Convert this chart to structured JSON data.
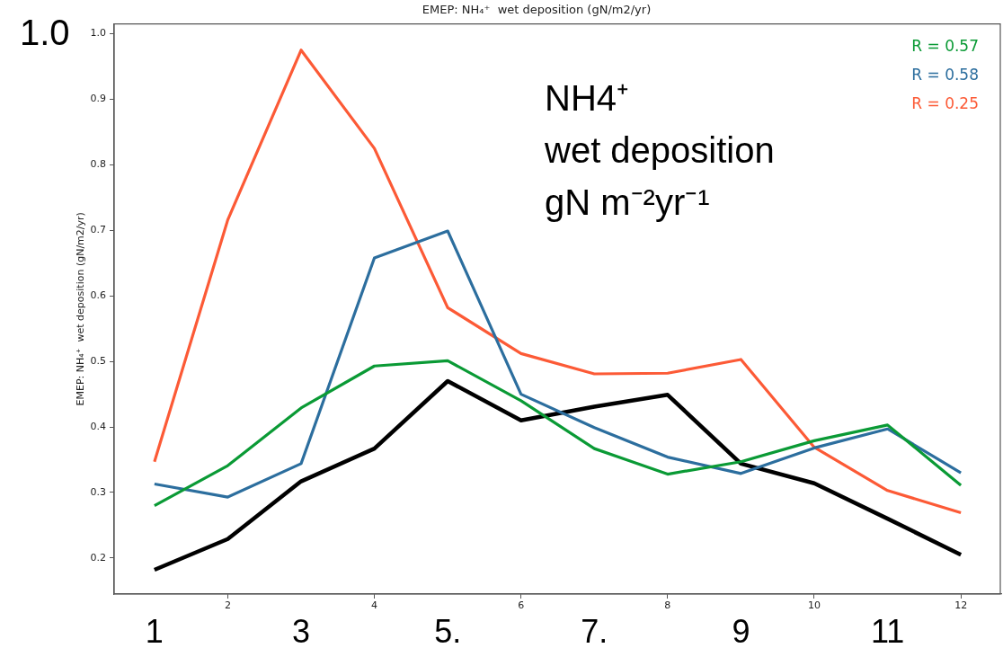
{
  "chart_data": {
    "type": "line",
    "title": "EMEP: NH₄⁺  wet deposition (gN/m2/yr)",
    "ylabel": "EMEP: NH₄⁺  wet deposition (gN/m2/yr)",
    "x": [
      1,
      2,
      3,
      4,
      5,
      6,
      7,
      8,
      9,
      10,
      11,
      12
    ],
    "series": [
      {
        "name": "R = 0.57",
        "color": "#0a9a35",
        "values": [
          0.28,
          0.341,
          0.429,
          0.493,
          0.501,
          0.44,
          0.367,
          0.328,
          0.347,
          0.379,
          0.403,
          0.311
        ]
      },
      {
        "name": "R = 0.58",
        "color": "#2c6e9e",
        "values": [
          0.313,
          0.293,
          0.344,
          0.658,
          0.699,
          0.45,
          0.399,
          0.354,
          0.329,
          0.368,
          0.397,
          0.33
        ]
      },
      {
        "name": "R = 0.25",
        "color": "#fc5a36",
        "values": [
          0.347,
          0.716,
          0.975,
          0.825,
          0.582,
          0.512,
          0.481,
          0.482,
          0.503,
          0.369,
          0.303,
          0.269
        ]
      },
      {
        "color": "#000000",
        "values": [
          0.182,
          0.229,
          0.317,
          0.367,
          0.47,
          0.41,
          0.431,
          0.449,
          0.344,
          0.314,
          0.26,
          0.205
        ]
      }
    ],
    "xlim": [
      0.45,
      12.55
    ],
    "ylim": [
      0.145,
      1.015
    ],
    "xticks": [
      2,
      4,
      6,
      8,
      10,
      12
    ],
    "x2ticks": [
      1,
      3,
      {
        "value": 5,
        "label": "5."
      },
      {
        "value": 7,
        "label": "7."
      },
      9,
      11
    ],
    "yticks": [
      0.2,
      0.3,
      0.4,
      0.5,
      0.6,
      0.7,
      0.8,
      0.9,
      {
        "value": 1,
        "label": "1.0"
      }
    ],
    "x2lim": [
      0.45,
      12.55
    ],
    "annotations": [
      "1.0",
      "NH4⁺\nwet deposition\ngN m⁻²yr⁻¹"
    ],
    "legend": "top right",
    "grid": false,
    "marker": "none",
    "line_style": "solid"
  }
}
